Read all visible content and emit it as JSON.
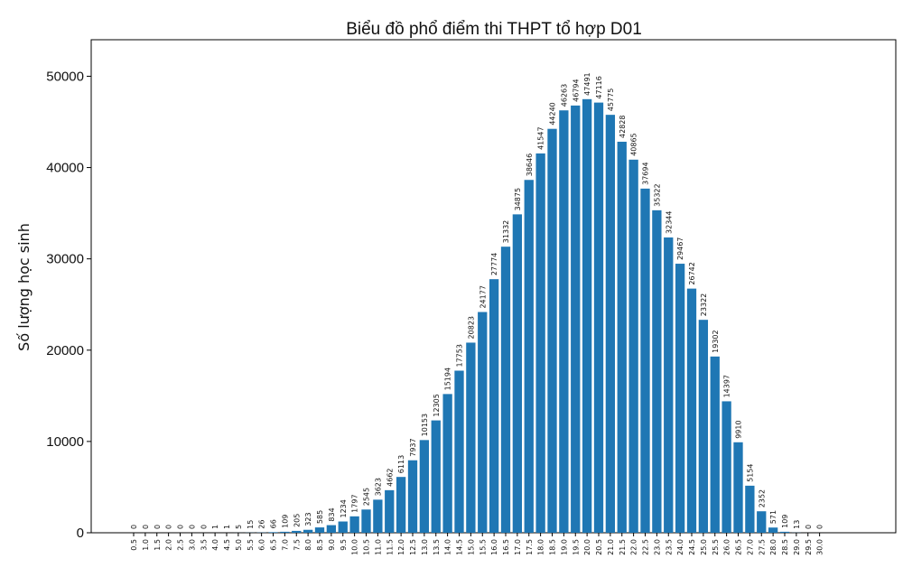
{
  "chart_data": {
    "type": "bar",
    "title": "Biểu đồ phổ điểm thi THPT tổ hợp D01",
    "xlabel": "",
    "ylabel": "Số lượng học sinh",
    "ylim": [
      0,
      54000
    ],
    "yticks": [
      0,
      10000,
      20000,
      30000,
      40000,
      50000
    ],
    "grid": false,
    "bar_color": "#1f77b4",
    "categories": [
      "0.5",
      "1.0",
      "1.5",
      "2.0",
      "2.5",
      "3.0",
      "3.5",
      "4.0",
      "4.5",
      "5.0",
      "5.5",
      "6.0",
      "6.5",
      "7.0",
      "7.5",
      "8.0",
      "8.5",
      "9.0",
      "9.5",
      "10.0",
      "10.5",
      "11.0",
      "11.5",
      "12.0",
      "12.5",
      "13.0",
      "13.5",
      "14.0",
      "14.5",
      "15.0",
      "15.5",
      "16.0",
      "16.5",
      "17.0",
      "17.5",
      "18.0",
      "18.5",
      "19.0",
      "19.5",
      "20.0",
      "20.5",
      "21.0",
      "21.5",
      "22.0",
      "22.5",
      "23.0",
      "23.5",
      "24.0",
      "24.5",
      "25.0",
      "25.5",
      "26.0",
      "26.5",
      "27.0",
      "27.5",
      "28.0",
      "28.5",
      "29.0",
      "29.5",
      "30.0"
    ],
    "values": [
      0,
      0,
      0,
      0,
      0,
      0,
      0,
      1,
      1,
      5,
      15,
      26,
      66,
      109,
      205,
      323,
      585,
      834,
      1234,
      1797,
      2545,
      3623,
      4662,
      6113,
      7937,
      10153,
      12305,
      15194,
      17753,
      20823,
      24177,
      27774,
      31332,
      34875,
      38646,
      41547,
      44240,
      46263,
      46794,
      47491,
      47116,
      45775,
      42828,
      40865,
      37694,
      35322,
      32344,
      29467,
      26742,
      23322,
      19302,
      14397,
      9910,
      5154,
      2352,
      571,
      109,
      13,
      0,
      0
    ]
  }
}
